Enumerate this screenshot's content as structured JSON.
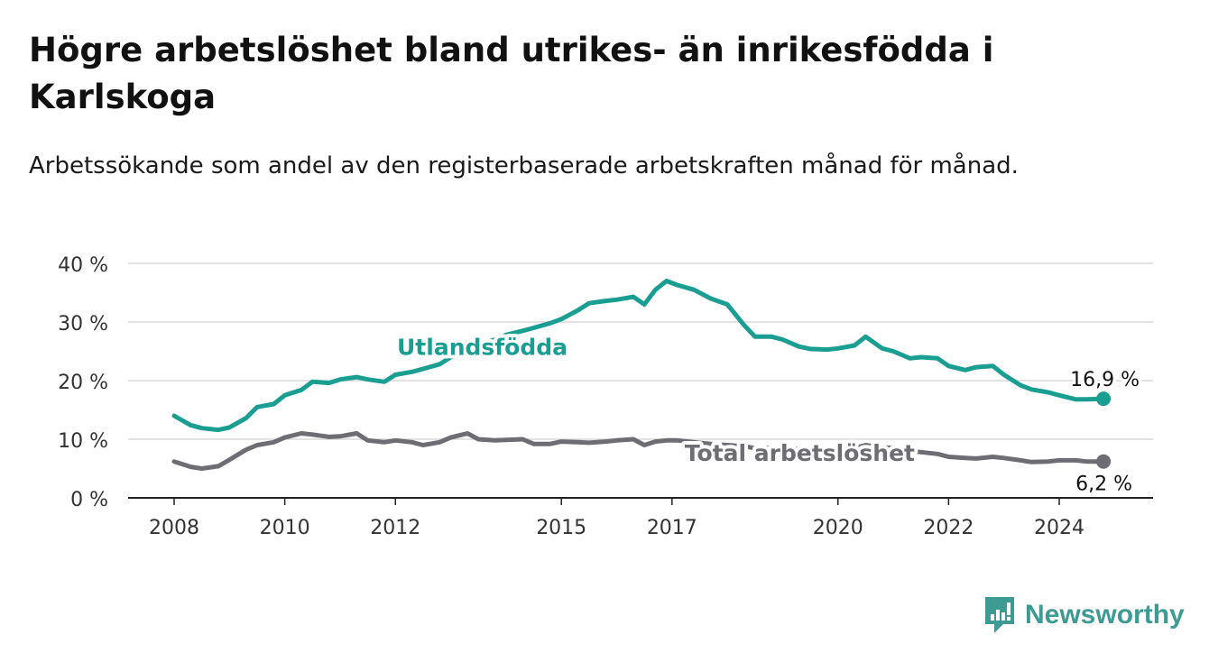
{
  "title": "Högre arbetslöshet bland utrikes- än inrikesfödda i Karlskoga",
  "subtitle": "Arbetssökande som andel av den registerbaserade arbetskraften månad för månad.",
  "brand": {
    "name": "Newsworthy",
    "color": "#3d9b93"
  },
  "colors": {
    "utlandsfodda": "#1a9e91",
    "total": "#6e6d73",
    "grid": "#d8d8d8",
    "axis": "#222222"
  },
  "chart_data": {
    "type": "line",
    "x_ticks": [
      2008,
      2010,
      2012,
      2015,
      2017,
      2020,
      2022,
      2024
    ],
    "ylim": [
      0,
      40
    ],
    "y_ticks": [
      "0 %",
      "10 %",
      "20 %",
      "30 %",
      "40 %"
    ],
    "grid": true,
    "series": [
      {
        "name": "Utlandsfödda",
        "end_label": "16,9 %",
        "points": [
          [
            2008.0,
            14.0
          ],
          [
            2008.3,
            12.4
          ],
          [
            2008.5,
            11.9
          ],
          [
            2008.8,
            11.6
          ],
          [
            2009.0,
            12.0
          ],
          [
            2009.3,
            13.6
          ],
          [
            2009.5,
            15.5
          ],
          [
            2009.8,
            16.0
          ],
          [
            2010.0,
            17.5
          ],
          [
            2010.3,
            18.4
          ],
          [
            2010.5,
            19.8
          ],
          [
            2010.8,
            19.6
          ],
          [
            2011.0,
            20.2
          ],
          [
            2011.3,
            20.6
          ],
          [
            2011.5,
            20.2
          ],
          [
            2011.8,
            19.8
          ],
          [
            2012.0,
            21.0
          ],
          [
            2012.3,
            21.5
          ],
          [
            2012.5,
            22.0
          ],
          [
            2012.8,
            22.8
          ],
          [
            2013.0,
            24.0
          ],
          [
            2013.3,
            25.0
          ],
          [
            2013.5,
            26.0
          ],
          [
            2013.8,
            27.0
          ],
          [
            2014.0,
            27.8
          ],
          [
            2014.3,
            28.5
          ],
          [
            2014.5,
            29.0
          ],
          [
            2014.8,
            29.8
          ],
          [
            2015.0,
            30.5
          ],
          [
            2015.3,
            32.0
          ],
          [
            2015.5,
            33.2
          ],
          [
            2015.8,
            33.6
          ],
          [
            2016.0,
            33.8
          ],
          [
            2016.3,
            34.3
          ],
          [
            2016.5,
            33.0
          ],
          [
            2016.7,
            35.5
          ],
          [
            2016.9,
            37.0
          ],
          [
            2017.1,
            36.3
          ],
          [
            2017.4,
            35.5
          ],
          [
            2017.7,
            34.0
          ],
          [
            2018.0,
            33.0
          ],
          [
            2018.3,
            29.5
          ],
          [
            2018.5,
            27.5
          ],
          [
            2018.8,
            27.5
          ],
          [
            2019.0,
            27.0
          ],
          [
            2019.3,
            25.8
          ],
          [
            2019.5,
            25.4
          ],
          [
            2019.8,
            25.3
          ],
          [
            2020.0,
            25.5
          ],
          [
            2020.3,
            26.0
          ],
          [
            2020.5,
            27.5
          ],
          [
            2020.8,
            25.5
          ],
          [
            2021.0,
            25.0
          ],
          [
            2021.3,
            23.8
          ],
          [
            2021.5,
            24.0
          ],
          [
            2021.8,
            23.8
          ],
          [
            2022.0,
            22.5
          ],
          [
            2022.3,
            21.8
          ],
          [
            2022.5,
            22.3
          ],
          [
            2022.8,
            22.5
          ],
          [
            2023.0,
            21.0
          ],
          [
            2023.3,
            19.2
          ],
          [
            2023.5,
            18.5
          ],
          [
            2023.8,
            18.0
          ],
          [
            2024.0,
            17.5
          ],
          [
            2024.3,
            16.8
          ],
          [
            2024.5,
            16.8
          ],
          [
            2024.8,
            16.9
          ]
        ]
      },
      {
        "name": "Total arbetslöshet",
        "end_label": "6,2 %",
        "points": [
          [
            2008.0,
            6.2
          ],
          [
            2008.3,
            5.3
          ],
          [
            2008.5,
            5.0
          ],
          [
            2008.8,
            5.4
          ],
          [
            2009.0,
            6.5
          ],
          [
            2009.3,
            8.2
          ],
          [
            2009.5,
            9.0
          ],
          [
            2009.8,
            9.5
          ],
          [
            2010.0,
            10.3
          ],
          [
            2010.3,
            11.0
          ],
          [
            2010.5,
            10.8
          ],
          [
            2010.8,
            10.4
          ],
          [
            2011.0,
            10.5
          ],
          [
            2011.3,
            11.0
          ],
          [
            2011.5,
            9.8
          ],
          [
            2011.8,
            9.5
          ],
          [
            2012.0,
            9.8
          ],
          [
            2012.3,
            9.5
          ],
          [
            2012.5,
            9.0
          ],
          [
            2012.8,
            9.5
          ],
          [
            2013.0,
            10.3
          ],
          [
            2013.3,
            11.0
          ],
          [
            2013.5,
            10.0
          ],
          [
            2013.8,
            9.8
          ],
          [
            2014.0,
            9.9
          ],
          [
            2014.3,
            10.0
          ],
          [
            2014.5,
            9.2
          ],
          [
            2014.8,
            9.2
          ],
          [
            2015.0,
            9.6
          ],
          [
            2015.3,
            9.5
          ],
          [
            2015.5,
            9.4
          ],
          [
            2015.8,
            9.6
          ],
          [
            2016.0,
            9.8
          ],
          [
            2016.3,
            10.0
          ],
          [
            2016.5,
            9.0
          ],
          [
            2016.7,
            9.6
          ],
          [
            2016.9,
            9.8
          ],
          [
            2017.1,
            9.8
          ],
          [
            2017.4,
            9.5
          ],
          [
            2017.7,
            9.2
          ],
          [
            2018.0,
            9.0
          ],
          [
            2018.3,
            8.8
          ],
          [
            2018.5,
            8.5
          ],
          [
            2018.8,
            8.5
          ],
          [
            2019.0,
            8.4
          ],
          [
            2019.3,
            8.3
          ],
          [
            2019.5,
            8.2
          ],
          [
            2019.8,
            8.0
          ],
          [
            2020.0,
            8.2
          ],
          [
            2020.3,
            8.5
          ],
          [
            2020.5,
            9.0
          ],
          [
            2020.8,
            8.6
          ],
          [
            2021.0,
            8.5
          ],
          [
            2021.3,
            8.0
          ],
          [
            2021.5,
            7.8
          ],
          [
            2021.8,
            7.5
          ],
          [
            2022.0,
            7.0
          ],
          [
            2022.3,
            6.8
          ],
          [
            2022.5,
            6.7
          ],
          [
            2022.8,
            7.0
          ],
          [
            2023.0,
            6.8
          ],
          [
            2023.3,
            6.4
          ],
          [
            2023.5,
            6.1
          ],
          [
            2023.8,
            6.2
          ],
          [
            2024.0,
            6.4
          ],
          [
            2024.3,
            6.4
          ],
          [
            2024.5,
            6.2
          ],
          [
            2024.8,
            6.2
          ]
        ]
      }
    ]
  }
}
